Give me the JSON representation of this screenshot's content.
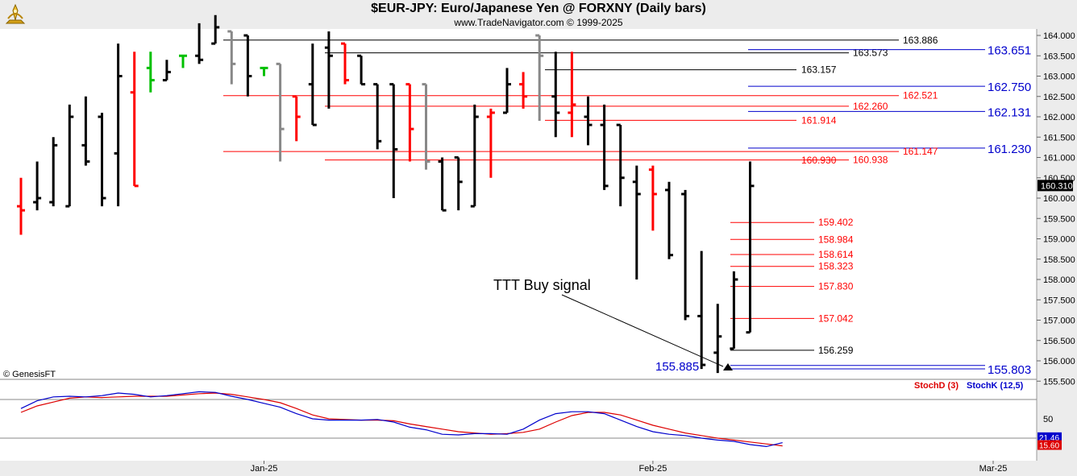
{
  "header": {
    "title": "$EUR-JPY:  Euro/Japanese Yen @ FORXNY  (Daily bars)",
    "subtitle": "www.TradeNavigator.com © 1999-2025"
  },
  "footer": {
    "copyright": "© GenesisFT"
  },
  "annotations": {
    "signal_label": "TTT Buy signal"
  },
  "colors": {
    "up_bar": "#000000",
    "down_bar": "#ff0000",
    "neutral_bar": "#888888",
    "doji_bar": "#00c000",
    "blue_level": "#0000cc",
    "red_level": "#ff0000",
    "black_level": "#000000",
    "stoch_d": "#dd0000",
    "stoch_k": "#0000cc"
  },
  "chart_data": [
    {
      "type": "ohlc",
      "title": "$EUR-JPY:  Euro/Japanese Yen @ FORXNY  (Daily bars)",
      "ylim": [
        155.4,
        164.1
      ],
      "y_ticks": [
        "164.000",
        "163.500",
        "163.000",
        "162.500",
        "162.000",
        "161.500",
        "161.000",
        "160.500",
        "160.000",
        "159.500",
        "159.000",
        "158.500",
        "158.000",
        "157.500",
        "157.000",
        "156.500",
        "156.000",
        "155.500"
      ],
      "x_labels": [
        {
          "label": "Jan-25",
          "bar": 15
        },
        {
          "label": "Feb-25",
          "bar": 39
        },
        {
          "label": "Mar-25",
          "bar": 60
        }
      ],
      "last_price": "160.310",
      "bars": [
        {
          "o": 159.8,
          "h": 160.5,
          "l": 159.1,
          "c": 159.7,
          "col": "down"
        },
        {
          "o": 159.9,
          "h": 160.9,
          "l": 159.7,
          "c": 160.0,
          "col": "up"
        },
        {
          "o": 159.9,
          "h": 161.5,
          "l": 159.8,
          "c": 161.3,
          "col": "up"
        },
        {
          "o": 159.8,
          "h": 162.3,
          "l": 159.8,
          "c": 162.0,
          "col": "up"
        },
        {
          "o": 161.3,
          "h": 162.5,
          "l": 160.8,
          "c": 160.9,
          "col": "up"
        },
        {
          "o": 162.0,
          "h": 162.1,
          "l": 159.8,
          "c": 160.0,
          "col": "up"
        },
        {
          "o": 161.1,
          "h": 163.8,
          "l": 159.8,
          "c": 163.0,
          "col": "up"
        },
        {
          "o": 162.6,
          "h": 163.6,
          "l": 160.3,
          "c": 160.3,
          "col": "down"
        },
        {
          "o": 163.2,
          "h": 163.6,
          "l": 162.6,
          "c": 162.9,
          "col": "doji"
        },
        {
          "o": 162.9,
          "h": 163.4,
          "l": 162.9,
          "c": 163.1,
          "col": "up"
        },
        {
          "o": 163.5,
          "h": 163.5,
          "l": 163.2,
          "c": 163.5,
          "col": "doji"
        },
        {
          "o": 163.5,
          "h": 164.3,
          "l": 163.3,
          "c": 163.4,
          "col": "up"
        },
        {
          "o": 163.8,
          "h": 164.5,
          "l": 163.8,
          "c": 164.2,
          "col": "up"
        },
        {
          "o": 164.1,
          "h": 164.1,
          "l": 162.8,
          "c": 163.3,
          "col": "neutral"
        },
        {
          "o": 164.0,
          "h": 164.0,
          "l": 162.5,
          "c": 163.0,
          "col": "up"
        },
        {
          "o": 163.2,
          "h": 163.2,
          "l": 163.0,
          "c": 163.2,
          "col": "doji"
        },
        {
          "o": 163.3,
          "h": 163.3,
          "l": 160.9,
          "c": 161.7,
          "col": "neutral"
        },
        {
          "o": 162.5,
          "h": 162.5,
          "l": 161.4,
          "c": 162.0,
          "col": "down"
        },
        {
          "o": 162.8,
          "h": 163.8,
          "l": 161.8,
          "c": 161.8,
          "col": "up"
        },
        {
          "o": 163.7,
          "h": 164.1,
          "l": 162.2,
          "c": 163.5,
          "col": "up"
        },
        {
          "o": 163.8,
          "h": 163.8,
          "l": 162.8,
          "c": 162.9,
          "col": "down"
        },
        {
          "o": 163.5,
          "h": 163.5,
          "l": 162.8,
          "c": 162.8,
          "col": "up"
        },
        {
          "o": 162.8,
          "h": 162.8,
          "l": 161.2,
          "c": 161.4,
          "col": "up"
        },
        {
          "o": 162.8,
          "h": 162.8,
          "l": 160.0,
          "c": 161.2,
          "col": "up"
        },
        {
          "o": 162.8,
          "h": 162.8,
          "l": 160.9,
          "c": 161.7,
          "col": "down"
        },
        {
          "o": 162.8,
          "h": 162.8,
          "l": 160.7,
          "c": 160.9,
          "col": "neutral"
        },
        {
          "o": 160.9,
          "h": 161.0,
          "l": 159.7,
          "c": 159.7,
          "col": "up"
        },
        {
          "o": 161.0,
          "h": 161.0,
          "l": 159.7,
          "c": 160.4,
          "col": "up"
        },
        {
          "o": 159.8,
          "h": 162.3,
          "l": 159.8,
          "c": 162.0,
          "col": "up"
        },
        {
          "o": 162.0,
          "h": 162.2,
          "l": 160.5,
          "c": 162.1,
          "col": "down"
        },
        {
          "o": 162.1,
          "h": 163.2,
          "l": 162.1,
          "c": 162.8,
          "col": "up"
        },
        {
          "o": 162.8,
          "h": 163.1,
          "l": 162.2,
          "c": 162.5,
          "col": "down"
        },
        {
          "o": 164.0,
          "h": 164.0,
          "l": 161.9,
          "c": 163.5,
          "col": "neutral"
        },
        {
          "o": 162.5,
          "h": 163.6,
          "l": 161.5,
          "c": 162.1,
          "col": "up"
        },
        {
          "o": 162.1,
          "h": 163.6,
          "l": 161.5,
          "c": 162.3,
          "col": "down"
        },
        {
          "o": 162.0,
          "h": 162.5,
          "l": 161.3,
          "c": 161.8,
          "col": "up"
        },
        {
          "o": 161.8,
          "h": 162.3,
          "l": 160.2,
          "c": 160.3,
          "col": "up"
        },
        {
          "o": 161.8,
          "h": 161.8,
          "l": 159.8,
          "c": 160.5,
          "col": "up"
        },
        {
          "o": 160.4,
          "h": 160.8,
          "l": 158.0,
          "c": 160.1,
          "col": "up"
        },
        {
          "o": 160.7,
          "h": 160.8,
          "l": 159.2,
          "c": 160.1,
          "col": "down"
        },
        {
          "o": 160.2,
          "h": 160.4,
          "l": 158.5,
          "c": 158.6,
          "col": "up"
        },
        {
          "o": 160.1,
          "h": 160.2,
          "l": 157.0,
          "c": 157.1,
          "col": "up"
        },
        {
          "o": 157.1,
          "h": 158.7,
          "l": 155.8,
          "c": 155.9,
          "col": "up"
        },
        {
          "o": 156.2,
          "h": 157.4,
          "l": 155.7,
          "c": 156.6,
          "col": "up"
        },
        {
          "o": 156.3,
          "h": 158.2,
          "l": 156.3,
          "c": 158.0,
          "col": "up"
        },
        {
          "o": 156.7,
          "h": 160.9,
          "l": 156.7,
          "c": 160.3,
          "col": "up"
        }
      ],
      "levels": [
        {
          "value": 163.886,
          "label": "163.886",
          "color": "black"
        },
        {
          "value": 163.573,
          "label": "163.573",
          "color": "black"
        },
        {
          "value": 163.651,
          "label": "163.651",
          "color": "blue"
        },
        {
          "value": 163.157,
          "label": "163.157",
          "color": "black"
        },
        {
          "value": 162.75,
          "label": "162.750",
          "color": "blue"
        },
        {
          "value": 162.521,
          "label": "162.521",
          "color": "red"
        },
        {
          "value": 162.26,
          "label": "162.260",
          "color": "red"
        },
        {
          "value": 162.131,
          "label": "162.131",
          "color": "blue"
        },
        {
          "value": 161.914,
          "label": "161.914",
          "color": "red"
        },
        {
          "value": 161.23,
          "label": "161.230",
          "color": "blue"
        },
        {
          "value": 161.147,
          "label": "161.147",
          "color": "red"
        },
        {
          "value": 160.938,
          "label": "160.938",
          "color": "red"
        },
        {
          "value": 160.93,
          "label": "160.930",
          "color": "red"
        },
        {
          "value": 159.402,
          "label": "159.402",
          "color": "red"
        },
        {
          "value": 158.984,
          "label": "158.984",
          "color": "red"
        },
        {
          "value": 158.614,
          "label": "158.614",
          "color": "red"
        },
        {
          "value": 158.323,
          "label": "158.323",
          "color": "red"
        },
        {
          "value": 157.83,
          "label": "157.830",
          "color": "red"
        },
        {
          "value": 157.042,
          "label": "157.042",
          "color": "red"
        },
        {
          "value": 156.259,
          "label": "156.259",
          "color": "black"
        },
        {
          "value": 155.885,
          "label": "155.885",
          "color": "blue"
        },
        {
          "value": 155.803,
          "label": "155.803",
          "color": "blue"
        }
      ]
    },
    {
      "type": "line",
      "ylim": [
        0,
        100
      ],
      "y_ticks": [
        "50"
      ],
      "reference_lines": [
        80,
        20
      ],
      "series": [
        {
          "name": "StochD (3)",
          "color": "red",
          "values": [
            60,
            70,
            76,
            82,
            84,
            83,
            84,
            85,
            85,
            85,
            87,
            89,
            90,
            88,
            84,
            80,
            75,
            66,
            56,
            50,
            49,
            48,
            48,
            47,
            42,
            38,
            34,
            30,
            28,
            26,
            27,
            29,
            34,
            45,
            55,
            60,
            60,
            56,
            48,
            40,
            34,
            28,
            24,
            20,
            17,
            14,
            11,
            8
          ]
        },
        {
          "name": "StochK (12,5)",
          "color": "blue",
          "values": [
            66,
            78,
            84,
            85,
            84,
            86,
            90,
            88,
            84,
            86,
            89,
            92,
            91,
            85,
            80,
            74,
            68,
            58,
            50,
            48,
            48,
            48,
            49,
            45,
            37,
            33,
            26,
            25,
            27,
            27,
            26,
            34,
            48,
            58,
            61,
            61,
            58,
            48,
            38,
            30,
            26,
            24,
            20,
            17,
            15,
            10,
            7,
            13
          ]
        }
      ],
      "last_values": [
        "21.46",
        "15.60"
      ]
    }
  ]
}
